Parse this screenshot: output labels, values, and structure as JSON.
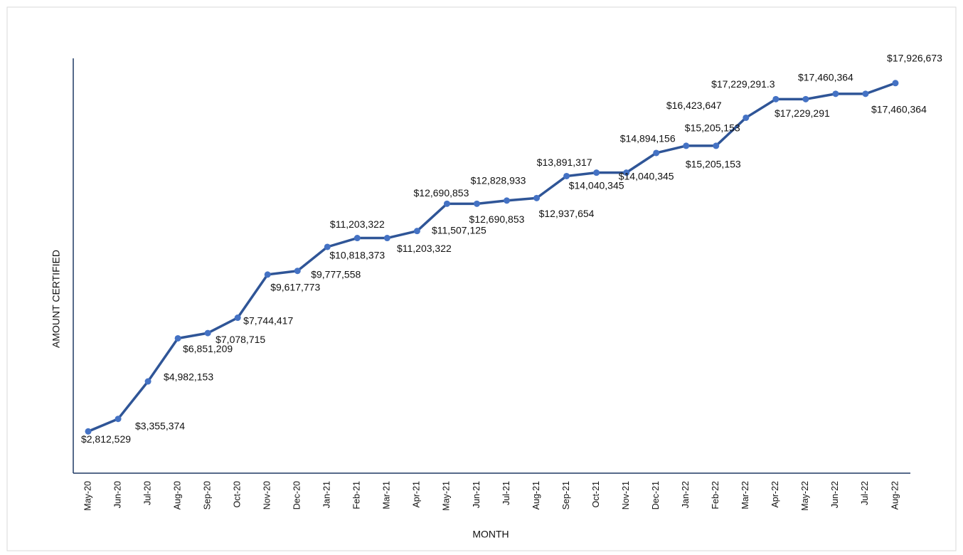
{
  "chart_data": {
    "type": "line",
    "y_label": "AMOUNT CERTIFIED",
    "x_label": "MONTH",
    "categories": [
      "May-20",
      "Jun-20",
      "Jul-20",
      "Aug-20",
      "Sep-20",
      "Oct-20",
      "Nov-20",
      "Dec-20",
      "Jan-21",
      "Feb-21",
      "Mar-21",
      "Apr-21",
      "May-21",
      "Jun-21",
      "Jul-21",
      "Aug-21",
      "Sep-21",
      "Oct-21",
      "Nov-21",
      "Dec-21",
      "Jan-22",
      "Feb-22",
      "Mar-22",
      "Apr-22",
      "May-22",
      "Jun-22",
      "Jul-22",
      "Aug-22"
    ],
    "series": [
      {
        "color": "#2f5597",
        "marker_color": "#4472c4",
        "values": [
          2812529,
          3355374,
          4982153,
          6851209,
          7078715,
          7744417,
          9617773,
          9777558,
          10818373,
          11203322,
          11203322,
          11507125,
          12690853,
          12690853,
          12828933,
          12937654,
          13891317,
          14040345,
          14040345,
          14894156,
          15205153,
          15205153,
          16423647,
          17229291.3,
          17229291,
          17460364,
          17460364,
          17926673
        ],
        "value_labels": [
          "$2,812,529",
          "$3,355,374",
          "$4,982,153",
          "$6,851,209",
          "$7,078,715",
          "$7,744,417",
          "$9,617,773",
          "$9,777,558",
          "$10,818,373",
          "$11,203,322",
          "$11,203,322",
          "$11,507,125",
          "$12,690,853",
          "$12,690,853",
          "$12,828,933",
          "$12,937,654",
          "$13,891,317",
          "$14,040,345",
          "$14,040,345",
          "$14,894,156",
          "$15,205,153",
          "$15,205,153",
          "$16,423,647",
          "$17,229,291.3",
          "$17,229,291",
          "$17,460,364",
          "$17,460,364",
          "$17,926,673"
        ]
      }
    ],
    "ylim": [
      1000000,
      19000000
    ],
    "grid": false
  }
}
